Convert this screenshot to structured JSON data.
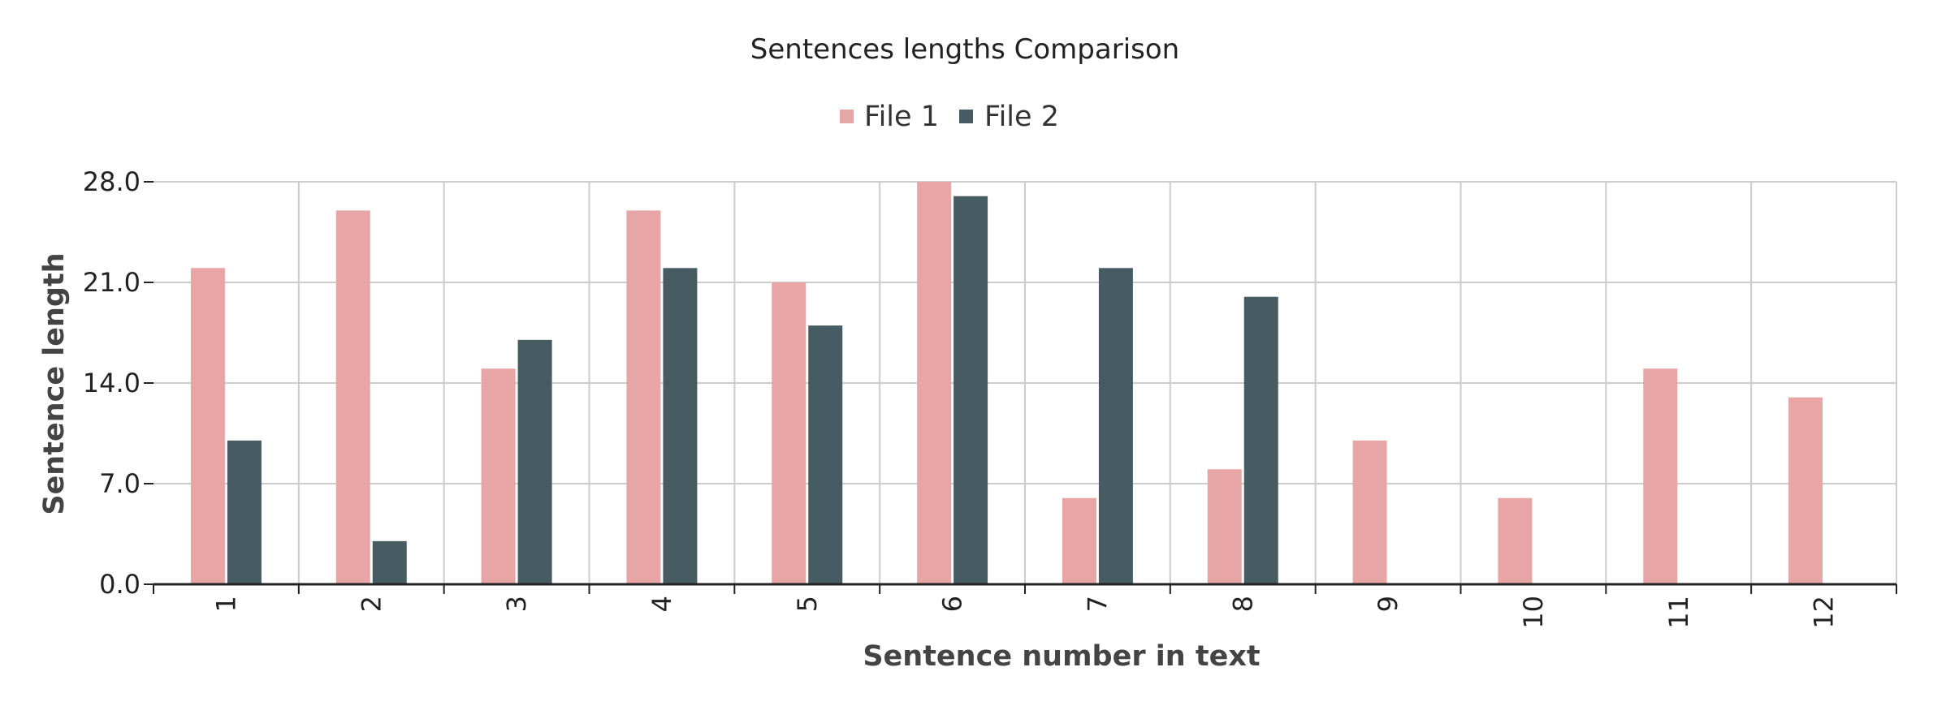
{
  "chart_data": {
    "type": "bar",
    "title": "Sentences lengths Comparison",
    "xlabel": "Sentence number in text",
    "ylabel": "Sentence length",
    "categories": [
      "1",
      "2",
      "3",
      "4",
      "5",
      "6",
      "7",
      "8",
      "9",
      "10",
      "11",
      "12"
    ],
    "series": [
      {
        "name": "File 1",
        "color": "#e8a5a5",
        "values": [
          22,
          26,
          15,
          26,
          21,
          28,
          6,
          8,
          10,
          6,
          15,
          13
        ]
      },
      {
        "name": "File 2",
        "color": "#475b63",
        "values": [
          10,
          3,
          17,
          22,
          18,
          27,
          22,
          20,
          0,
          0,
          0,
          0
        ]
      }
    ],
    "ylim": [
      0,
      28
    ],
    "yticks": [
      "0.0",
      "7.0",
      "14.0",
      "21.0",
      "28.0"
    ],
    "grid": true,
    "legend_position": "top-center"
  }
}
